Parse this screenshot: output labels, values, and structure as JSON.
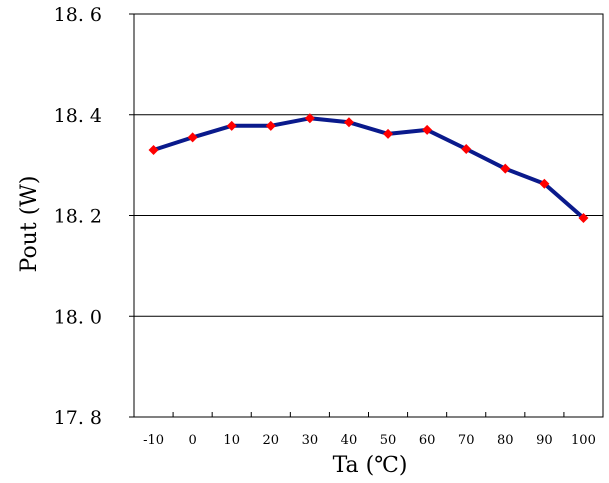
{
  "chart_data": {
    "type": "line",
    "categories": [
      "-10",
      "0",
      "10",
      "20",
      "30",
      "40",
      "50",
      "60",
      "70",
      "80",
      "90",
      "100"
    ],
    "series": [
      {
        "values": [
          18.33,
          18.355,
          18.378,
          18.378,
          18.393,
          18.385,
          18.362,
          18.37,
          18.332,
          18.293,
          18.263,
          18.195
        ],
        "line_color": "#0a1a8c",
        "marker_color": "#ff0000",
        "marker": "diamond"
      }
    ],
    "xlabel": "Ta (℃)",
    "ylabel": "Pout (W)",
    "ylim": [
      17.8,
      18.6
    ],
    "yticks": [
      "17. 8",
      "18. 0",
      "18. 2",
      "18. 4",
      "18. 6"
    ],
    "grid": true
  }
}
